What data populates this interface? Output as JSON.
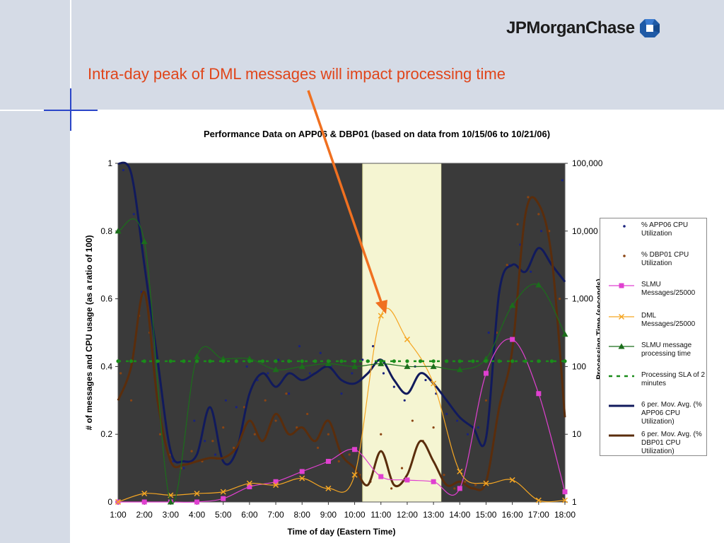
{
  "slide": {
    "title": "Intra-day peak of DML messages will impact processing time",
    "logo_text": "JPMorganChase",
    "logo_icon": "octagon-logo-icon"
  },
  "colors": {
    "background_band": "#d5dbe6",
    "title": "#e0451a",
    "arrow": "#f07020",
    "shade_dark": "#3a3a3a",
    "shade_highlight": "#f5f5d2",
    "app06_dots": "#1a237e",
    "dbp01_dots": "#8b4513",
    "slmu_msgs": "#e040d0",
    "dml_msgs": "#f5a623",
    "slmu_time": "#1b6e1b",
    "sla": "#1a8c1a",
    "app06_avg": "#111a5c",
    "dbp01_avg": "#5a2d0c"
  },
  "chart_data": {
    "type": "line",
    "title": "Performance Data on APP06 & DBP01 (based on data from 10/15/06 to 10/21/06)",
    "xlabel": "Time of day (Eastern Time)",
    "ylabel": "# of messages and CPU usage (as a ratio of 100)",
    "ylabel_right": "Processing Time (seconds)",
    "x_ticks": [
      "1:00",
      "2:00",
      "3:00",
      "4:00",
      "5:00",
      "6:00",
      "7:00",
      "8:00",
      "9:00",
      "10:00",
      "11:00",
      "12:00",
      "13:00",
      "14:00",
      "15:00",
      "16:00",
      "17:00",
      "18:00"
    ],
    "xlim": [
      1,
      18
    ],
    "y_ticks": [
      "0",
      "0.2",
      "0.4",
      "0.6",
      "0.8",
      "1"
    ],
    "ylim": [
      0,
      1
    ],
    "y2_ticks": [
      "1",
      "10",
      "100",
      "1,000",
      "10,000",
      "100,000"
    ],
    "y2lim": [
      1,
      100000
    ],
    "y2_scale": "log",
    "shaded_regions": [
      {
        "from": 1,
        "to": 10.3,
        "style": "dark"
      },
      {
        "from": 10.3,
        "to": 13.3,
        "style": "highlight"
      },
      {
        "from": 13.3,
        "to": 18,
        "style": "dark"
      }
    ],
    "legend_position": "right",
    "series": [
      {
        "name": "SLMU Messages/25000",
        "marker": "square",
        "x": [
          1,
          2,
          3,
          4,
          5,
          6,
          7,
          8,
          9,
          10,
          11,
          12,
          13,
          14,
          15,
          16,
          17,
          18
        ],
        "y": [
          0,
          0,
          0,
          0,
          0.01,
          0.045,
          0.06,
          0.09,
          0.12,
          0.155,
          0.075,
          0.065,
          0.06,
          0.04,
          0.38,
          0.48,
          0.32,
          0.03
        ]
      },
      {
        "name": "DML Messages/25000",
        "marker": "x",
        "x": [
          1,
          2,
          3,
          4,
          5,
          6,
          7,
          8,
          9,
          10,
          11,
          12,
          13,
          14,
          15,
          16,
          17,
          18
        ],
        "y": [
          0,
          0.025,
          0.02,
          0.025,
          0.03,
          0.055,
          0.05,
          0.07,
          0.04,
          0.08,
          0.55,
          0.48,
          0.35,
          0.09,
          0.055,
          0.065,
          0.005,
          0.005
        ]
      },
      {
        "name": "SLMU message processing time",
        "marker": "triangle",
        "axis": "right",
        "x": [
          1,
          2,
          3,
          4,
          5,
          6,
          7,
          8,
          9,
          10,
          11,
          12,
          13,
          14,
          15,
          16,
          17,
          18
        ],
        "y": [
          10000,
          7000,
          1,
          140,
          130,
          130,
          90,
          100,
          110,
          100,
          110,
          100,
          100,
          90,
          130,
          800,
          1600,
          300
        ]
      },
      {
        "name": "Processing SLA of 2 minutes",
        "style": "dashed",
        "axis": "right",
        "x": [
          1,
          18
        ],
        "y": [
          120,
          120
        ]
      },
      {
        "name": "6 per. Mov. Avg. (% APP06 CPU Utilization)",
        "x": [
          1,
          1.5,
          2,
          2.5,
          3,
          3.5,
          4,
          4.5,
          5,
          5.5,
          6,
          6.5,
          7,
          7.5,
          8,
          8.5,
          9,
          9.5,
          10,
          10.5,
          11,
          11.5,
          12,
          12.5,
          13,
          13.5,
          14,
          14.5,
          15,
          15.5,
          16,
          16.5,
          17,
          17.5,
          18
        ],
        "y": [
          1,
          0.97,
          0.7,
          0.42,
          0.15,
          0.12,
          0.14,
          0.28,
          0.12,
          0.15,
          0.32,
          0.38,
          0.34,
          0.38,
          0.36,
          0.38,
          0.4,
          0.36,
          0.35,
          0.38,
          0.42,
          0.36,
          0.32,
          0.38,
          0.35,
          0.3,
          0.25,
          0.22,
          0.19,
          0.62,
          0.7,
          0.68,
          0.75,
          0.7,
          0.65
        ]
      },
      {
        "name": "6 per. Mov. Avg. (% DBP01 CPU Utilization)",
        "x": [
          1,
          1.5,
          2,
          2.5,
          3,
          3.5,
          4,
          4.5,
          5,
          5.5,
          6,
          6.5,
          7,
          7.5,
          8,
          8.5,
          9,
          9.5,
          10,
          10.5,
          11,
          11.5,
          12,
          12.5,
          13,
          13.5,
          14,
          14.5,
          15,
          15.5,
          16,
          16.5,
          17,
          17.5,
          18
        ],
        "y": [
          0.3,
          0.4,
          0.62,
          0.3,
          0.12,
          0.11,
          0.12,
          0.13,
          0.13,
          0.16,
          0.24,
          0.18,
          0.26,
          0.2,
          0.22,
          0.18,
          0.24,
          0.14,
          0.1,
          0.05,
          0.15,
          0.05,
          0.08,
          0.18,
          0.12,
          0.05,
          0.06,
          0.04,
          0.06,
          0.28,
          0.45,
          0.85,
          0.88,
          0.72,
          0.25
        ]
      },
      {
        "name": "% APP06 CPU Utilization",
        "style": "dots",
        "x": [
          1.2,
          1.6,
          1.9,
          2.3,
          2.7,
          3.1,
          3.5,
          3.9,
          4.3,
          4.7,
          5.1,
          5.5,
          5.9,
          6.3,
          6.7,
          7.1,
          7.5,
          7.9,
          8.3,
          8.7,
          9.1,
          9.5,
          9.9,
          10.3,
          10.7,
          11.1,
          11.5,
          11.9,
          12.3,
          12.7,
          13.1,
          13.5,
          13.9,
          14.3,
          14.7,
          15.1,
          15.5,
          15.9,
          16.3,
          16.7,
          17.1,
          17.5,
          17.9
        ],
        "y": [
          0.98,
          0.85,
          0.62,
          0.45,
          0.3,
          0.12,
          0.1,
          0.24,
          0.18,
          0.14,
          0.3,
          0.28,
          0.4,
          0.36,
          0.38,
          0.42,
          0.32,
          0.46,
          0.38,
          0.44,
          0.4,
          0.32,
          0.38,
          0.42,
          0.46,
          0.38,
          0.34,
          0.3,
          0.4,
          0.36,
          0.32,
          0.26,
          0.24,
          0.2,
          0.22,
          0.5,
          0.62,
          0.7,
          0.76,
          0.68,
          0.8,
          0.72,
          0.95
        ]
      },
      {
        "name": "% DBP01 CPU Utilization",
        "style": "dots",
        "x": [
          1.1,
          1.5,
          1.8,
          2.2,
          2.6,
          3.0,
          3.4,
          3.8,
          4.2,
          4.6,
          5.0,
          5.4,
          5.8,
          6.2,
          6.6,
          7.0,
          7.4,
          7.8,
          8.2,
          8.6,
          9.0,
          9.4,
          9.8,
          10.2,
          10.6,
          11.0,
          11.4,
          11.8,
          12.2,
          12.6,
          13.0,
          13.4,
          13.8,
          14.2,
          14.6,
          15.0,
          15.4,
          15.8,
          16.2,
          16.6,
          17.0,
          17.4,
          17.8
        ],
        "y": [
          0.38,
          0.3,
          0.55,
          0.5,
          0.2,
          0.14,
          0.1,
          0.15,
          0.12,
          0.18,
          0.22,
          0.16,
          0.28,
          0.2,
          0.3,
          0.24,
          0.32,
          0.22,
          0.26,
          0.16,
          0.2,
          0.12,
          0.14,
          0.08,
          0.06,
          0.2,
          0.04,
          0.1,
          0.24,
          0.18,
          0.22,
          0.08,
          0.04,
          0.06,
          0.05,
          0.3,
          0.5,
          0.7,
          0.82,
          0.9,
          0.85,
          0.8,
          0.6
        ]
      }
    ]
  }
}
